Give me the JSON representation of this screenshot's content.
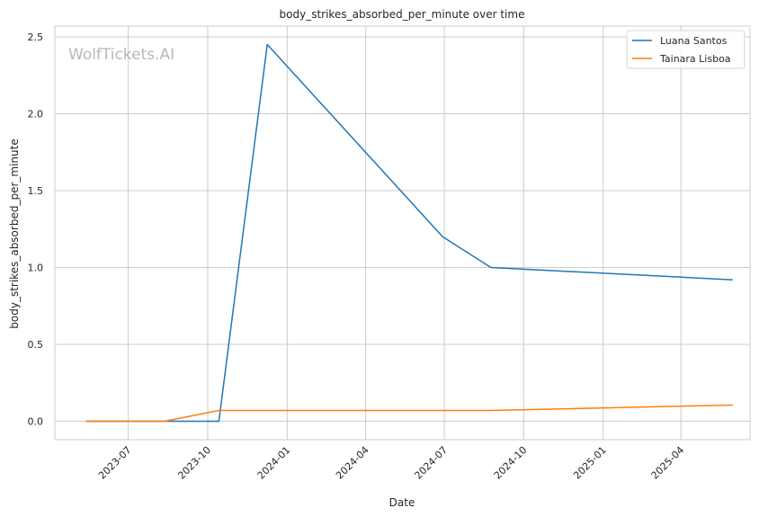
{
  "chart_data": {
    "type": "line",
    "title": "body_strikes_absorbed_per_minute over time",
    "xlabel": "Date",
    "ylabel": "body_strikes_absorbed_per_minute",
    "watermark": "WolfTickets.AI",
    "x_ticks": [
      "2023-07",
      "2023-10",
      "2024-01",
      "2024-04",
      "2024-07",
      "2024-10",
      "2025-01",
      "2025-04"
    ],
    "y_ticks": [
      "0.0",
      "0.5",
      "1.0",
      "1.5",
      "2.0",
      "2.5"
    ],
    "xlim": [
      "2023-04-07",
      "2025-06-20"
    ],
    "ylim": [
      -0.12,
      2.57
    ],
    "grid": true,
    "legend_position": "top-right",
    "series": [
      {
        "name": "Luana Santos",
        "color": "#1f77b4",
        "x": [
          "2023-05-13",
          "2023-08-12",
          "2023-10-14",
          "2023-12-09",
          "2024-06-29",
          "2024-08-24",
          "2025-05-31"
        ],
        "y": [
          0.0,
          0.0,
          0.0,
          2.45,
          1.2,
          1.0,
          0.92
        ]
      },
      {
        "name": "Tainara Lisboa",
        "color": "#ff7f0e",
        "x": [
          "2023-05-13",
          "2023-08-12",
          "2023-10-14",
          "2024-08-24",
          "2025-05-31"
        ],
        "y": [
          0.0,
          0.0,
          0.07,
          0.07,
          0.105
        ]
      }
    ]
  }
}
